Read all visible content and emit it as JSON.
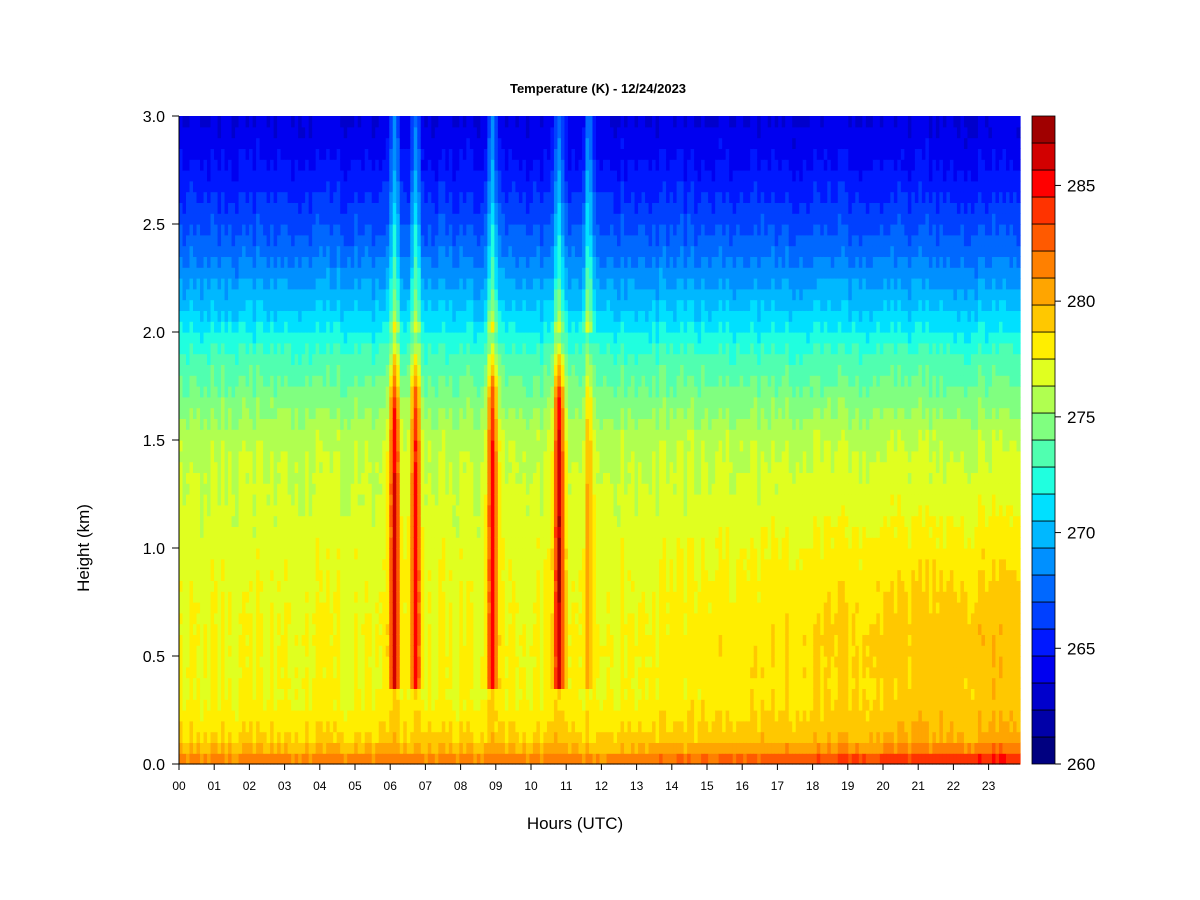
{
  "chart_data": {
    "type": "heatmap",
    "title": "Temperature (K) - 12/24/2023",
    "xlabel": "Hours (UTC)",
    "ylabel": "Height (km)",
    "xlim": [
      0,
      24
    ],
    "ylim": [
      0.0,
      3.0
    ],
    "x_ticks": [
      "00",
      "01",
      "02",
      "03",
      "04",
      "05",
      "06",
      "07",
      "08",
      "09",
      "10",
      "11",
      "12",
      "13",
      "14",
      "15",
      "16",
      "17",
      "18",
      "19",
      "20",
      "21",
      "22",
      "23"
    ],
    "y_ticks": [
      "0.0",
      "0.5",
      "1.0",
      "1.5",
      "2.0",
      "2.5",
      "3.0"
    ],
    "colorbar": {
      "range": [
        260,
        288
      ],
      "levels": 24,
      "ticks": [
        "260",
        "265",
        "270",
        "275",
        "280",
        "285"
      ],
      "colors": [
        "#000080",
        "#0000a8",
        "#0000cc",
        "#0000f0",
        "#0018ff",
        "#0040ff",
        "#0068ff",
        "#0090ff",
        "#00b8ff",
        "#00e0ff",
        "#20ffdf",
        "#50ffb0",
        "#80ff80",
        "#b0ff50",
        "#e0ff20",
        "#ffee00",
        "#ffc800",
        "#ffa500",
        "#ff8000",
        "#ff5a00",
        "#ff3300",
        "#ff0000",
        "#d20000",
        "#a00000"
      ]
    },
    "profile": {
      "note_heights_km": [
        0.0,
        0.1,
        0.3,
        0.6,
        1.0,
        1.5,
        1.9,
        2.1,
        2.4,
        2.8,
        3.0
      ],
      "temperature_K": [
        282,
        279,
        277.5,
        277.5,
        277,
        276,
        273,
        270.5,
        267.5,
        264.5,
        263.5
      ]
    },
    "warm_plumes": [
      {
        "hour": 6.15,
        "peak_K": 286
      },
      {
        "hour": 6.75,
        "peak_K": 285
      },
      {
        "hour": 8.95,
        "peak_K": 285
      },
      {
        "hour": 10.85,
        "peak_K": 287
      },
      {
        "hour": 11.7,
        "peak_K": 280
      }
    ]
  }
}
